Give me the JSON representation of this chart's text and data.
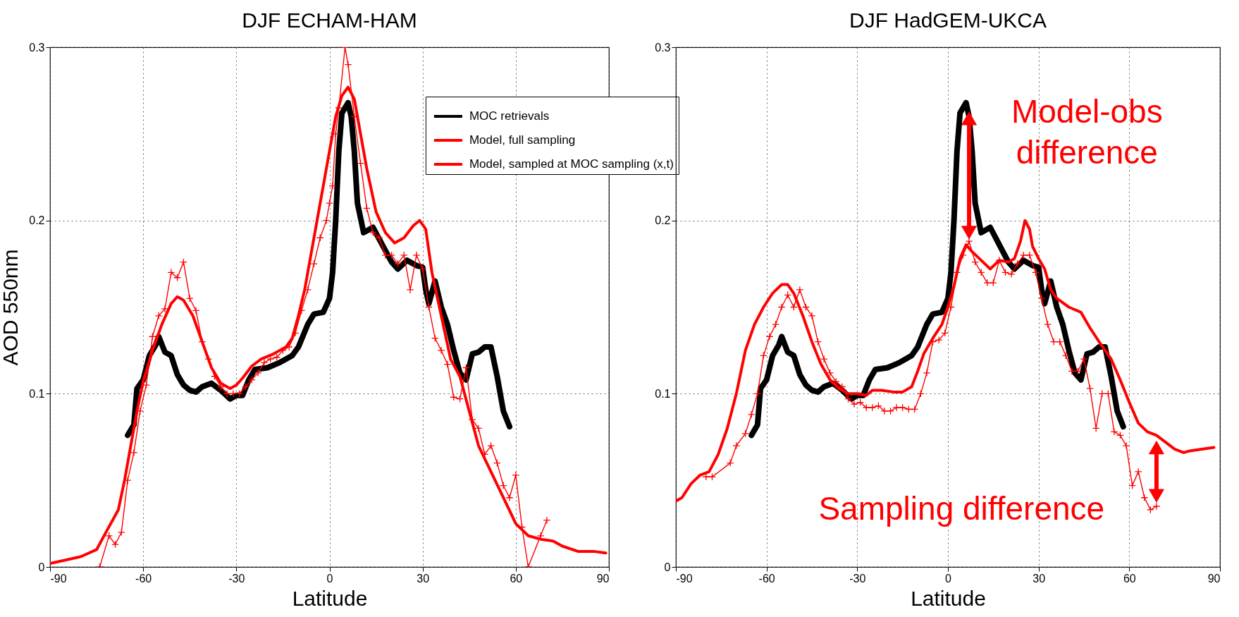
{
  "chart_data": [
    {
      "type": "line",
      "title": "DJF ECHAM-HAM",
      "xlabel": "Latitude",
      "ylabel": "AOD 550nm",
      "xlim": [
        -90,
        90
      ],
      "xticks": [
        -90,
        -60,
        -30,
        0,
        30,
        60,
        90
      ],
      "ylim": [
        0,
        0.3
      ],
      "yticks": [
        0,
        0.1,
        0.2,
        0.3
      ],
      "grid": true,
      "legend": "top right",
      "series": [
        {
          "name": "MOC retrievals",
          "color": "#000000",
          "marker": "none",
          "x": [
            -65,
            -63,
            -62,
            -60,
            -58,
            -56,
            -55,
            -53,
            -51,
            -49,
            -47,
            -45,
            -43,
            -41,
            -38,
            -35,
            -32,
            -30,
            -28,
            -26,
            -24,
            -20,
            -16,
            -12,
            -10,
            -7,
            -5,
            -2,
            0,
            1,
            2,
            3,
            4,
            6,
            7,
            8,
            9,
            11,
            14,
            17,
            20,
            22,
            25,
            28,
            30,
            31,
            32,
            34,
            36,
            38,
            40,
            42,
            44,
            46,
            48,
            50,
            52,
            54,
            56,
            58
          ],
          "values": [
            0.076,
            0.082,
            0.103,
            0.108,
            0.122,
            0.128,
            0.133,
            0.124,
            0.122,
            0.111,
            0.105,
            0.102,
            0.101,
            0.104,
            0.106,
            0.102,
            0.097,
            0.099,
            0.099,
            0.108,
            0.114,
            0.115,
            0.118,
            0.122,
            0.127,
            0.14,
            0.146,
            0.147,
            0.155,
            0.17,
            0.2,
            0.24,
            0.262,
            0.268,
            0.26,
            0.24,
            0.21,
            0.193,
            0.196,
            0.186,
            0.176,
            0.172,
            0.177,
            0.174,
            0.173,
            0.16,
            0.152,
            0.165,
            0.15,
            0.14,
            0.125,
            0.112,
            0.108,
            0.123,
            0.124,
            0.127,
            0.127,
            0.11,
            0.09,
            0.081
          ]
        },
        {
          "name": "Model, full sampling",
          "color": "#ff0000",
          "marker": "none",
          "x": [
            -90,
            -85,
            -80,
            -75,
            -72,
            -68,
            -66,
            -64,
            -62,
            -60,
            -57,
            -54,
            -51,
            -49,
            -47,
            -44,
            -41,
            -38,
            -35,
            -32,
            -30,
            -28,
            -25,
            -22,
            -18,
            -14,
            -12,
            -10,
            -8,
            -6,
            -4,
            -2,
            0,
            2,
            4,
            6,
            8,
            10,
            12,
            15,
            18,
            21,
            24,
            27,
            29,
            31,
            33,
            36,
            39,
            42,
            45,
            48,
            52,
            56,
            60,
            64,
            68,
            72,
            75,
            80,
            85,
            89
          ],
          "values": [
            0.002,
            0.004,
            0.006,
            0.01,
            0.02,
            0.033,
            0.05,
            0.07,
            0.09,
            0.107,
            0.125,
            0.14,
            0.152,
            0.156,
            0.154,
            0.145,
            0.13,
            0.115,
            0.106,
            0.103,
            0.105,
            0.109,
            0.116,
            0.12,
            0.123,
            0.127,
            0.132,
            0.145,
            0.16,
            0.18,
            0.2,
            0.22,
            0.24,
            0.26,
            0.272,
            0.277,
            0.27,
            0.25,
            0.23,
            0.205,
            0.193,
            0.187,
            0.19,
            0.197,
            0.2,
            0.195,
            0.17,
            0.145,
            0.12,
            0.11,
            0.09,
            0.07,
            0.055,
            0.04,
            0.025,
            0.018,
            0.016,
            0.015,
            0.012,
            0.009,
            0.009,
            0.008
          ]
        },
        {
          "name": "Model, sampled at MOC sampling (x,t)",
          "color": "#ff0000",
          "marker": "cross",
          "x": [
            -74,
            -71,
            -69,
            -67,
            -65,
            -63,
            -61,
            -59,
            -57,
            -55,
            -53,
            -51,
            -49,
            -47,
            -45,
            -43,
            -41,
            -39,
            -37,
            -35,
            -33,
            -31,
            -29,
            -27,
            -25,
            -23,
            -21,
            -19,
            -17,
            -15,
            -13,
            -11,
            -9,
            -7,
            -5,
            -3,
            -1,
            0,
            1,
            2,
            3,
            5,
            6,
            8,
            10,
            12,
            14,
            16,
            18,
            20,
            22,
            24,
            26,
            28,
            30,
            32,
            34,
            36,
            38,
            40,
            42,
            44,
            46,
            48,
            50,
            52,
            54,
            56,
            58,
            60,
            62,
            64,
            68,
            70
          ],
          "values": [
            0.0,
            0.018,
            0.013,
            0.02,
            0.05,
            0.066,
            0.09,
            0.105,
            0.133,
            0.145,
            0.149,
            0.17,
            0.167,
            0.176,
            0.155,
            0.148,
            0.13,
            0.12,
            0.11,
            0.104,
            0.1,
            0.1,
            0.1,
            0.104,
            0.108,
            0.112,
            0.118,
            0.12,
            0.121,
            0.125,
            0.127,
            0.135,
            0.148,
            0.16,
            0.175,
            0.19,
            0.2,
            0.21,
            0.22,
            0.25,
            0.265,
            0.3,
            0.29,
            0.26,
            0.233,
            0.207,
            0.193,
            0.19,
            0.18,
            0.18,
            0.175,
            0.18,
            0.16,
            0.18,
            0.172,
            0.15,
            0.132,
            0.125,
            0.117,
            0.098,
            0.097,
            0.115,
            0.085,
            0.08,
            0.065,
            0.07,
            0.06,
            0.047,
            0.04,
            0.053,
            0.023,
            0.0,
            0.018,
            0.027
          ]
        }
      ]
    },
    {
      "type": "line",
      "title": "DJF HadGEM-UKCA",
      "xlabel": "Latitude",
      "xlim": [
        -90,
        90
      ],
      "xticks": [
        -90,
        -60,
        -30,
        0,
        30,
        60,
        90
      ],
      "ylim": [
        0,
        0.3
      ],
      "yticks": [
        0,
        0.1,
        0.2,
        0.3
      ],
      "grid": true,
      "annotations": [
        "Model-obs difference",
        "Sampling difference"
      ],
      "series": [
        {
          "color": "#000000",
          "marker": "none",
          "x": [
            -65,
            -63,
            -62,
            -60,
            -58,
            -56,
            -55,
            -53,
            -51,
            -49,
            -47,
            -45,
            -43,
            -41,
            -38,
            -35,
            -32,
            -30,
            -28,
            -26,
            -24,
            -20,
            -16,
            -12,
            -10,
            -7,
            -5,
            -2,
            0,
            1,
            2,
            3,
            4,
            6,
            7,
            8,
            9,
            11,
            14,
            17,
            20,
            22,
            25,
            28,
            30,
            31,
            32,
            34,
            36,
            38,
            40,
            42,
            44,
            46,
            48,
            50,
            52,
            54,
            56,
            58
          ],
          "values": [
            0.076,
            0.082,
            0.103,
            0.108,
            0.122,
            0.128,
            0.133,
            0.124,
            0.122,
            0.111,
            0.105,
            0.102,
            0.101,
            0.104,
            0.106,
            0.102,
            0.097,
            0.099,
            0.099,
            0.108,
            0.114,
            0.115,
            0.118,
            0.122,
            0.127,
            0.14,
            0.146,
            0.147,
            0.155,
            0.17,
            0.2,
            0.24,
            0.262,
            0.268,
            0.26,
            0.24,
            0.21,
            0.193,
            0.196,
            0.186,
            0.176,
            0.172,
            0.177,
            0.174,
            0.173,
            0.16,
            0.152,
            0.165,
            0.15,
            0.14,
            0.125,
            0.112,
            0.108,
            0.123,
            0.124,
            0.127,
            0.127,
            0.11,
            0.09,
            0.081
          ]
        },
        {
          "color": "#ff0000",
          "marker": "none",
          "x": [
            -90,
            -88,
            -85,
            -82,
            -79,
            -76,
            -73,
            -70,
            -67,
            -64,
            -61,
            -58,
            -55,
            -53,
            -51,
            -48,
            -45,
            -42,
            -39,
            -36,
            -33,
            -30,
            -27,
            -25,
            -22,
            -18,
            -15,
            -12,
            -10,
            -8,
            -5,
            -2,
            0,
            2,
            4,
            6,
            8,
            11,
            14,
            17,
            20,
            22,
            24,
            25.5,
            27,
            28,
            30,
            32,
            34,
            36,
            40,
            44,
            47,
            50,
            54,
            57,
            60,
            63,
            66,
            69,
            72,
            75,
            78,
            80,
            84,
            88
          ],
          "values": [
            0.038,
            0.04,
            0.048,
            0.053,
            0.055,
            0.065,
            0.08,
            0.1,
            0.125,
            0.14,
            0.15,
            0.158,
            0.163,
            0.163,
            0.158,
            0.145,
            0.13,
            0.117,
            0.108,
            0.103,
            0.1,
            0.1,
            0.099,
            0.102,
            0.102,
            0.101,
            0.101,
            0.104,
            0.113,
            0.123,
            0.132,
            0.14,
            0.15,
            0.162,
            0.178,
            0.186,
            0.182,
            0.177,
            0.172,
            0.177,
            0.176,
            0.178,
            0.188,
            0.2,
            0.195,
            0.185,
            0.178,
            0.172,
            0.16,
            0.155,
            0.15,
            0.147,
            0.138,
            0.13,
            0.12,
            0.108,
            0.095,
            0.083,
            0.078,
            0.076,
            0.072,
            0.068,
            0.066,
            0.067,
            0.068,
            0.069
          ]
        },
        {
          "color": "#ff0000",
          "marker": "cross",
          "x": [
            -80,
            -78,
            -72,
            -70,
            -67,
            -65,
            -63,
            -61,
            -59,
            -57,
            -55,
            -53,
            -51,
            -49,
            -47,
            -45,
            -43,
            -41,
            -39,
            -37,
            -35,
            -33,
            -31,
            -29,
            -27,
            -25,
            -23,
            -21,
            -19,
            -17,
            -15,
            -13,
            -11,
            -9,
            -7,
            -5,
            -3,
            -1,
            1,
            3,
            5,
            7,
            9,
            11,
            13,
            15,
            17,
            19,
            21,
            23,
            25,
            27,
            29,
            31,
            33,
            35,
            37,
            39,
            41,
            43,
            45,
            47,
            49,
            51,
            53,
            55,
            57,
            59,
            61,
            63,
            65,
            67,
            69
          ],
          "values": [
            0.052,
            0.052,
            0.06,
            0.07,
            0.077,
            0.088,
            0.1,
            0.122,
            0.133,
            0.14,
            0.15,
            0.157,
            0.15,
            0.16,
            0.15,
            0.145,
            0.13,
            0.12,
            0.112,
            0.107,
            0.104,
            0.097,
            0.094,
            0.095,
            0.092,
            0.092,
            0.093,
            0.09,
            0.09,
            0.092,
            0.092,
            0.091,
            0.091,
            0.1,
            0.112,
            0.13,
            0.131,
            0.135,
            0.15,
            0.17,
            0.18,
            0.188,
            0.176,
            0.17,
            0.164,
            0.164,
            0.177,
            0.17,
            0.169,
            0.175,
            0.18,
            0.18,
            0.17,
            0.155,
            0.14,
            0.13,
            0.13,
            0.122,
            0.113,
            0.113,
            0.12,
            0.103,
            0.08,
            0.1,
            0.1,
            0.078,
            0.076,
            0.07,
            0.047,
            0.055,
            0.04,
            0.033,
            0.035
          ]
        }
      ]
    }
  ]
}
